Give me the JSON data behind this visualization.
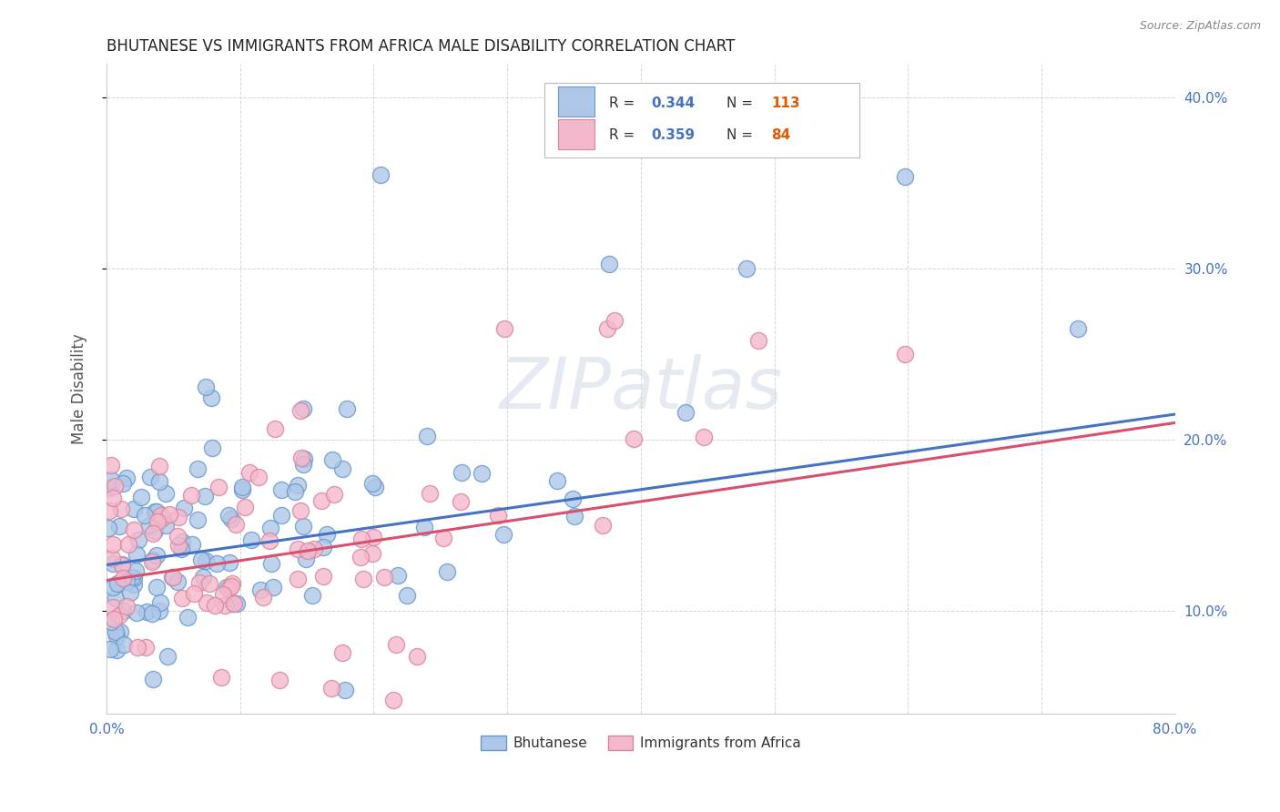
{
  "title": "BHUTANESE VS IMMIGRANTS FROM AFRICA MALE DISABILITY CORRELATION CHART",
  "source": "Source: ZipAtlas.com",
  "ylabel": "Male Disability",
  "xlim": [
    0.0,
    0.8
  ],
  "ylim": [
    0.04,
    0.42
  ],
  "xticks": [
    0.0,
    0.1,
    0.2,
    0.3,
    0.4,
    0.5,
    0.6,
    0.7,
    0.8
  ],
  "xticklabels": [
    "0.0%",
    "",
    "",
    "",
    "",
    "",
    "",
    "",
    "80.0%"
  ],
  "yticks": [
    0.1,
    0.2,
    0.3,
    0.4
  ],
  "yticklabels": [
    "10.0%",
    "20.0%",
    "30.0%",
    "40.0%"
  ],
  "line_blue": "#4472c4",
  "line_pink": "#d94f6e",
  "scatter_blue_face": "#aec7e8",
  "scatter_blue_edge": "#6699cc",
  "scatter_pink_face": "#f4b8cc",
  "scatter_pink_edge": "#d9849a",
  "R_blue": 0.344,
  "N_blue": 113,
  "R_pink": 0.359,
  "N_pink": 84,
  "legend_label_blue": "Bhutanese",
  "legend_label_pink": "Immigrants from Africa",
  "watermark": "ZIPatlas",
  "tick_color": "#4472c4",
  "ylabel_color": "#555555",
  "title_color": "#222222",
  "source_color": "#888888",
  "grid_color": "#cccccc",
  "legend_N_color": "#e05a00",
  "legend_R_color": "#4472c4"
}
